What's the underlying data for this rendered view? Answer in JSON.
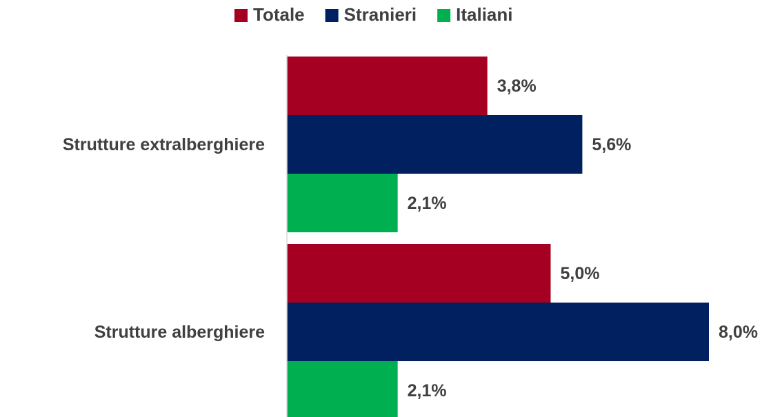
{
  "chart_data": {
    "type": "hbar",
    "categories": [
      "Strutture extralberghiere",
      "Strutture alberghiere"
    ],
    "series": [
      {
        "name": "Totale",
        "color": "#a50021",
        "values": [
          3.8,
          5.0
        ],
        "value_labels": [
          "3,8%",
          "5,0%"
        ]
      },
      {
        "name": "Stranieri",
        "color": "#002060",
        "values": [
          5.6,
          8.0
        ],
        "value_labels": [
          "5,6%",
          "8,0%"
        ]
      },
      {
        "name": "Italiani",
        "color": "#00b050",
        "values": [
          2.1,
          2.1
        ],
        "value_labels": [
          "2,1%",
          "2,1%"
        ]
      }
    ],
    "legend": "top"
  }
}
